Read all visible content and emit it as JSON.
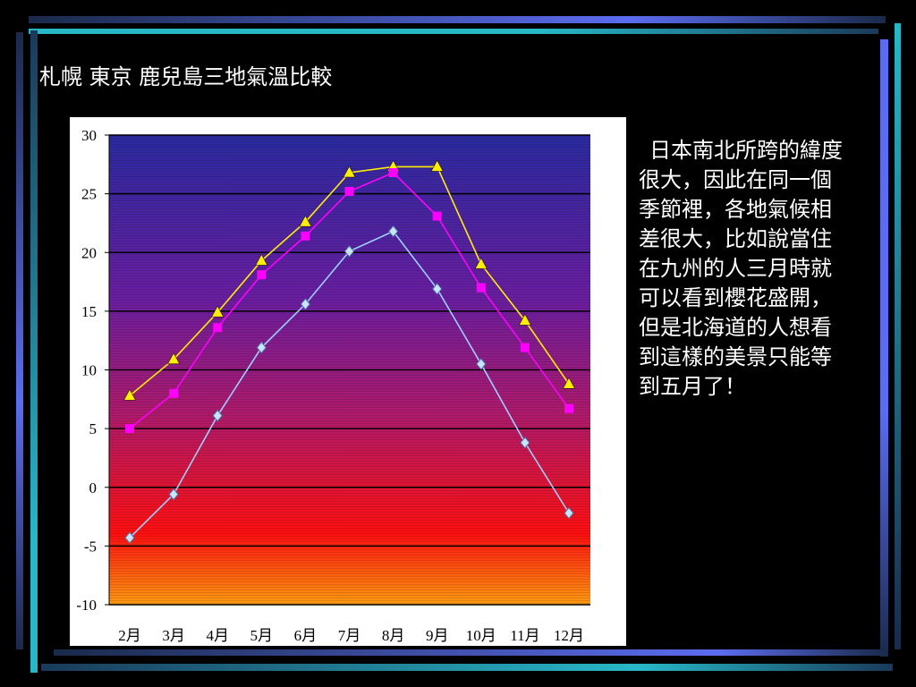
{
  "slide": {
    "title": "札幌 東京 鹿兒島三地氣溫比較",
    "body_text": "日本南北所跨的緯度很大，因此在同一個季節裡，各地氣候相差很大，比如說當住在九州的人三月時就可以看到櫻花盛開，但是北海道的人想看到這樣的美景只能等到五月了！"
  },
  "colors": {
    "background": "#000000",
    "frame_blue": "#5b6cf0",
    "frame_cyan": "#27b8c8",
    "frame_dark": "#1a2a4a",
    "plot_top": "#2a2aa0",
    "plot_mid": "#8a1a8a",
    "plot_bottom": "#ff9a10"
  },
  "chart_data": {
    "type": "line",
    "categories": [
      "2月",
      "3月",
      "4月",
      "5月",
      "6月",
      "7月",
      "8月",
      "9月",
      "10月",
      "11月",
      "12月"
    ],
    "ylim": [
      -10,
      30
    ],
    "yticks": [
      "30",
      "25",
      "20",
      "15",
      "10",
      "5",
      "0",
      "-5",
      "-10"
    ],
    "grid": true,
    "legend": "none",
    "series": [
      {
        "color": "#ffee00",
        "marker": "triangle",
        "values": [
          7.8,
          10.9,
          14.9,
          19.3,
          22.6,
          26.8,
          27.3,
          27.3,
          19.0,
          14.2,
          8.8
        ]
      },
      {
        "color": "#ff00ff",
        "marker": "square",
        "values": [
          5.0,
          8.0,
          13.6,
          18.1,
          21.4,
          25.2,
          26.8,
          23.1,
          17.0,
          11.9,
          6.7
        ]
      },
      {
        "color": "#9ccfff",
        "marker": "diamond",
        "values": [
          -4.3,
          -0.6,
          6.1,
          11.9,
          15.6,
          20.1,
          21.8,
          16.9,
          10.5,
          3.8,
          -2.2
        ]
      }
    ]
  }
}
